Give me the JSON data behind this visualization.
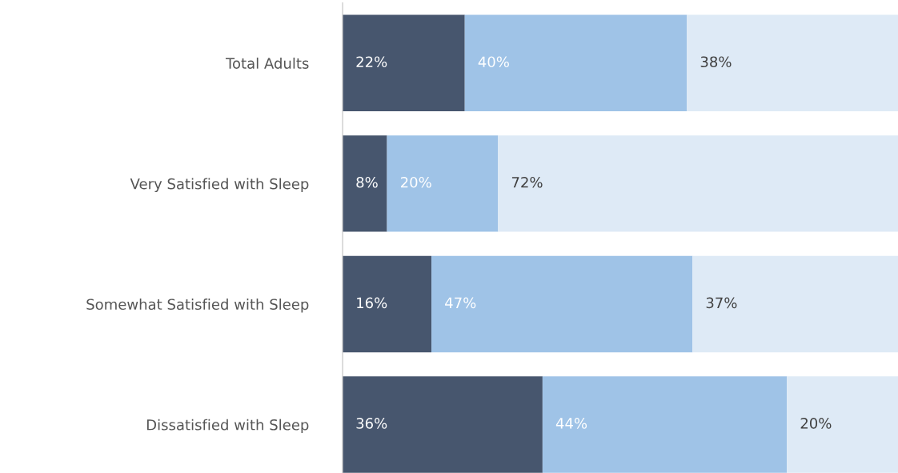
{
  "chart_data": {
    "type": "bar",
    "orientation": "horizontal",
    "stacked": true,
    "categories": [
      "Total Adults",
      "Very Satisfied with Sleep",
      "Somewhat Satisfied with Sleep",
      "Dissatisfied with Sleep"
    ],
    "series": [
      {
        "color": "#47566e",
        "values": [
          22,
          8,
          16,
          36
        ],
        "value_labels": [
          "22%",
          "8%",
          "16%",
          "36%"
        ]
      },
      {
        "color": "#9fc3e7",
        "values": [
          40,
          20,
          47,
          44
        ],
        "value_labels": [
          "40%",
          "20%",
          "47%",
          "44%"
        ]
      },
      {
        "color": "#deeaf6",
        "values": [
          38,
          72,
          37,
          20
        ],
        "value_labels": [
          "38%",
          "72%",
          "37%",
          "20%"
        ]
      }
    ],
    "xlim": [
      0,
      100
    ],
    "tick_labels": "y"
  }
}
